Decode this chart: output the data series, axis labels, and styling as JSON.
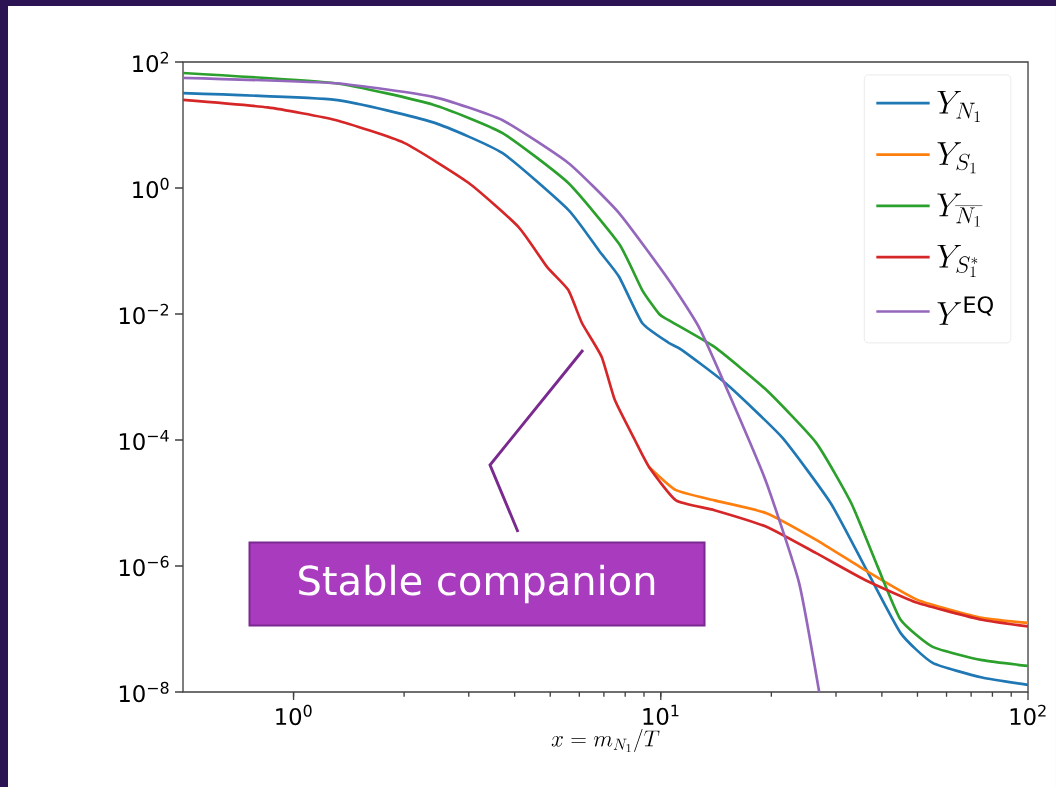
{
  "chart_data": {
    "type": "line",
    "xlabel": "x = m_{N_1}/T",
    "log": "xy",
    "legend": "top right",
    "grid": false,
    "xlim": [
      0.5,
      100
    ],
    "ylim": [
      1e-08,
      100
    ],
    "xticks": [
      {
        "value": 1,
        "label": "10$^{0}$"
      },
      {
        "value": 10,
        "label": "10$^{1}$"
      },
      {
        "value": 100,
        "label": "10$^{2}$"
      }
    ],
    "yticks": [
      {
        "value": 1e-08,
        "label": "10$^{−8}$"
      },
      {
        "value": 1e-06,
        "label": "10$^{−6}$"
      },
      {
        "value": 0.0001,
        "label": "10$^{−4}$"
      },
      {
        "value": 0.01,
        "label": "10$^{−2}$"
      },
      {
        "value": 1,
        "label": "10$^{0}$"
      },
      {
        "value": 100,
        "label": "10$^{2}$"
      }
    ],
    "series": [
      {
        "name": "Y_{N_1}",
        "color": "#1f77b4",
        "x": [
          0.5,
          1.3,
          2.4,
          3.7,
          5.6,
          6.8,
          7.7,
          8.9,
          10.5,
          11.4,
          15,
          21.4,
          29,
          36,
          45,
          55,
          75,
          100
        ],
        "values": [
          32,
          25,
          11,
          3.6,
          0.45,
          0.1,
          0.039,
          0.0072,
          0.0035,
          0.0027,
          0.0008,
          0.00011,
          1e-05,
          9.6e-07,
          8.6e-08,
          2.9e-08,
          1.7e-08,
          1.3e-08
        ]
      },
      {
        "name": "Y_{S_1}",
        "color": "#ff7f0e",
        "x": [
          9.3,
          11,
          14,
          19.4,
          26.5,
          36,
          50,
          75,
          100
        ],
        "values": [
          3.7e-05,
          1.6e-05,
          1.1e-05,
          6.9e-06,
          2.6e-06,
          8.6e-07,
          2.9e-07,
          1.5e-07,
          1.25e-07
        ]
      },
      {
        "name": "Y_{\\overline{N_1}}",
        "color": "#2ca02c",
        "x": [
          0.5,
          1.3,
          2.4,
          3.7,
          5.6,
          7.7,
          8.9,
          9.9,
          10.5,
          14,
          19.4,
          26.5,
          33,
          39,
          45,
          55,
          75,
          100
        ],
        "values": [
          67,
          46,
          21,
          7.5,
          1.2,
          0.13,
          0.024,
          0.01,
          0.008,
          0.003,
          0.00062,
          9e-05,
          1e-05,
          9.6e-07,
          1.4e-07,
          5.2e-08,
          3.2e-08,
          2.6e-08
        ]
      },
      {
        "name": "Y_{S_1^*}",
        "color": "#d62728",
        "x": [
          0.5,
          0.85,
          1.3,
          2,
          3,
          4.1,
          4.9,
          5.6,
          6.1,
          6.9,
          7.5,
          8.5,
          9.3,
          11,
          14,
          19.4,
          26.5,
          36,
          50,
          75,
          100
        ],
        "values": [
          25,
          19,
          12,
          5.2,
          1.2,
          0.24,
          0.056,
          0.024,
          0.0072,
          0.0021,
          0.00043,
          0.0001,
          3.7e-05,
          1.1e-05,
          7.7e-06,
          4.2e-06,
          1.6e-06,
          6e-07,
          2.6e-07,
          1.4e-07,
          1.1e-07
        ]
      },
      {
        "name": "Y^{\\mathrm{EQ}}",
        "color": "#9467bd",
        "x": [
          0.5,
          1.3,
          2.4,
          3.7,
          5.6,
          7.7,
          10.5,
          12.7,
          15.6,
          19.4,
          23.8,
          27
        ],
        "values": [
          56,
          46,
          28,
          12,
          2.5,
          0.4,
          0.035,
          0.0062,
          0.00043,
          2.1e-05,
          5.4e-07,
          1e-08
        ]
      }
    ],
    "annotations": [
      "Stable companion"
    ]
  }
}
